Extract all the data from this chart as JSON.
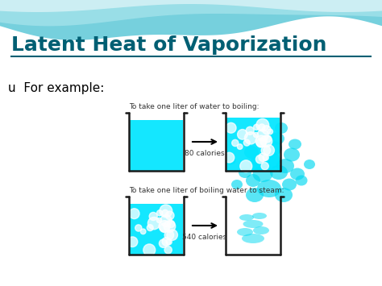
{
  "title": "Latent Heat of Vaporization",
  "title_color": "#005f73",
  "title_fontsize": 18,
  "bullet_text": "u  For example:",
  "bullet_fontsize": 11,
  "label1": "To take one liter of water to boiling:",
  "label2": "To take one liter of boiling water to steam:",
  "cal1": "80 calories",
  "cal2": "540 calories",
  "bg_color": "#f0f8fb",
  "wave_color1": "#5ec8d8",
  "wave_color2": "#a8e4ec",
  "wave_color3": "#d0f0f8",
  "cyan": "#00e5ff",
  "container_color": "#1a1a1a"
}
